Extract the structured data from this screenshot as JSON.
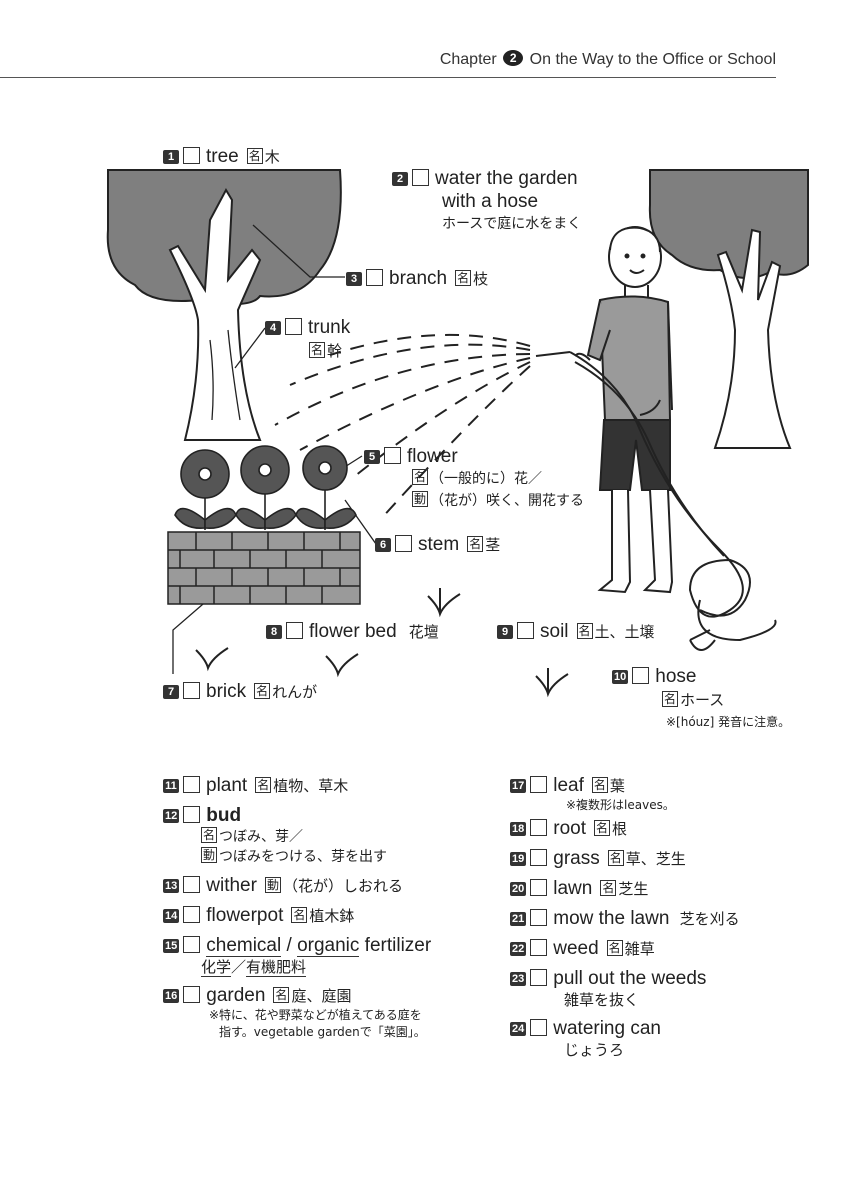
{
  "header": {
    "chapter_word": "Chapter",
    "chapter_num": "2",
    "title": "On the Way to the Office or School"
  },
  "labels": [
    {
      "num": "1",
      "en": "tree",
      "pos": "名",
      "ja": "木"
    },
    {
      "num": "2",
      "en_line1": "water the garden",
      "en_line2": "with a hose",
      "ja": "ホースで庭に水をまく"
    },
    {
      "num": "3",
      "en": "branch",
      "pos": "名",
      "ja": "枝"
    },
    {
      "num": "4",
      "en": "trunk",
      "pos": "名",
      "ja": "幹"
    },
    {
      "num": "5",
      "en": "flower",
      "pos1": "名",
      "ja1": "（一般的に）花／",
      "pos2": "動",
      "ja2": "（花が）咲く、開花する"
    },
    {
      "num": "6",
      "en": "stem",
      "pos": "名",
      "ja": "茎"
    },
    {
      "num": "7",
      "en": "brick",
      "pos": "名",
      "ja": "れんが"
    },
    {
      "num": "8",
      "en": "flower bed",
      "ja": "花壇"
    },
    {
      "num": "9",
      "en": "soil",
      "pos": "名",
      "ja": "土、土壌"
    },
    {
      "num": "10",
      "en": "hose",
      "pos": "名",
      "ja": "ホース",
      "note": "※[hóuz] 発音に注意。"
    }
  ],
  "vocab_left": [
    {
      "num": "11",
      "en": "plant",
      "pos": "名",
      "ja": "植物、草木"
    },
    {
      "num": "12",
      "en": "bud",
      "pos1": "名",
      "ja1": "つぼみ、芽／",
      "pos2": "動",
      "ja2": "つぼみをつける、芽を出す"
    },
    {
      "num": "13",
      "en": "wither",
      "pos": "動",
      "ja": "（花が）しおれる"
    },
    {
      "num": "14",
      "en": "flowerpot",
      "pos": "名",
      "ja": "植木鉢"
    },
    {
      "num": "15",
      "en_a": "chemical",
      "sep": " / ",
      "en_b": "organic",
      "en_c": " fertilizer",
      "ja_a": "化学",
      "ja_sep": "／",
      "ja_b": "有機肥料"
    },
    {
      "num": "16",
      "en": "garden",
      "pos": "名",
      "ja": "庭、庭園",
      "note1": "※特に、花や野菜などが植えてある庭を",
      "note2": "指す。vegetable gardenで「菜園」。"
    }
  ],
  "vocab_right": [
    {
      "num": "17",
      "en": "leaf",
      "pos": "名",
      "ja": "葉",
      "note": "※複数形はleaves。"
    },
    {
      "num": "18",
      "en": "root",
      "pos": "名",
      "ja": "根"
    },
    {
      "num": "19",
      "en": "grass",
      "pos": "名",
      "ja": "草、芝生"
    },
    {
      "num": "20",
      "en": "lawn",
      "pos": "名",
      "ja": "芝生"
    },
    {
      "num": "21",
      "en": "mow the lawn",
      "ja": "芝を刈る"
    },
    {
      "num": "22",
      "en": "weed",
      "pos": "名",
      "ja": "雑草"
    },
    {
      "num": "23",
      "en": "pull out the weeds",
      "ja": "雑草を抜く"
    },
    {
      "num": "24",
      "en": "watering can",
      "ja": "じょうろ"
    }
  ],
  "colors": {
    "foliage": "#7f7f7f",
    "ink": "#222222",
    "shirt": "#9a9a9a",
    "shorts": "#333333",
    "flower": "#555555"
  }
}
